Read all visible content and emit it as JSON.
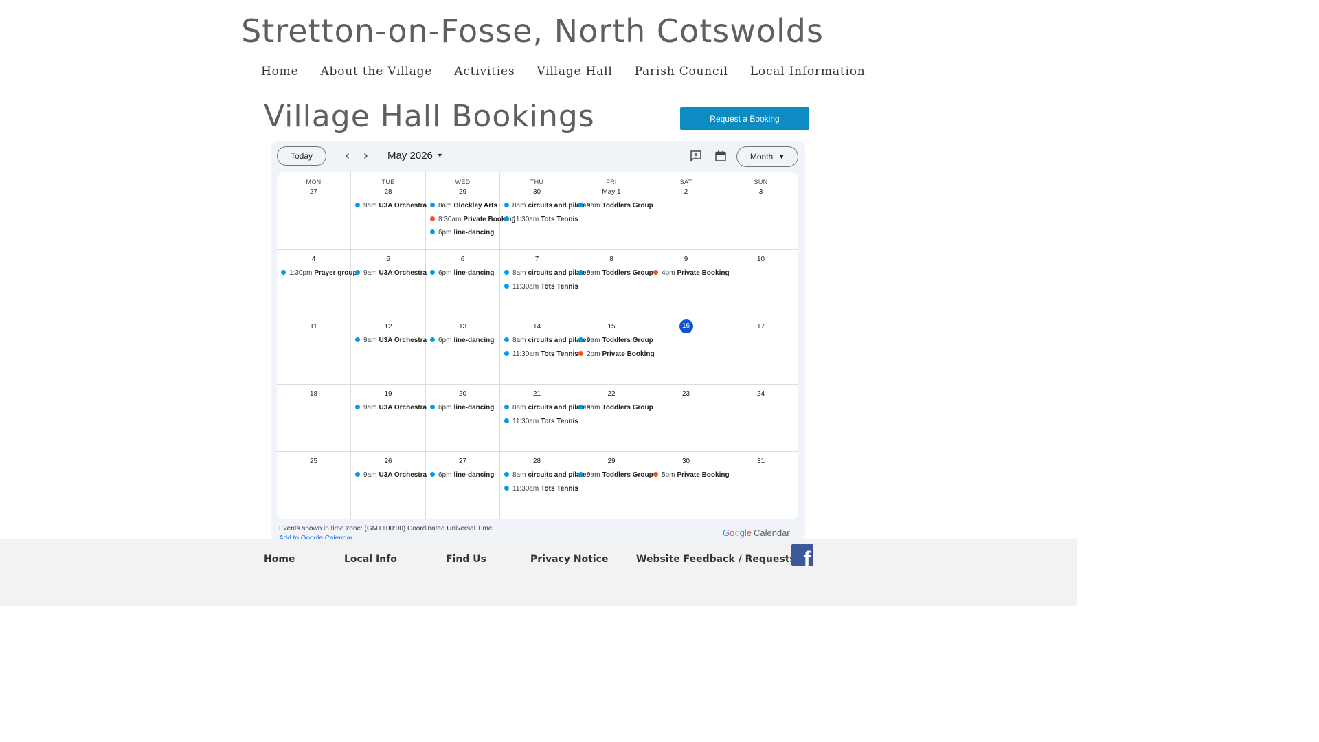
{
  "site": {
    "title": "Stretton-on-Fosse, North Cotswolds"
  },
  "nav": [
    "Home",
    "About the Village",
    "Activities",
    "Village Hall",
    "Parish Council",
    "Local Information"
  ],
  "page": {
    "title": "Village Hall Bookings",
    "request_button": "Request a Booking"
  },
  "calendar": {
    "today_label": "Today",
    "month_label": "May 2026",
    "view_label": "Month",
    "weekdays": [
      "MON",
      "TUE",
      "WED",
      "THU",
      "FRI",
      "SAT",
      "SUN"
    ],
    "colors": {
      "regular": "#039be5",
      "private": "#f4511e",
      "today": "#0b57d0"
    },
    "weeks": [
      [
        {
          "day": "27",
          "events": []
        },
        {
          "day": "28",
          "events": [
            {
              "time": "9am",
              "name": "U3A Orchestra",
              "kind": "regular"
            }
          ]
        },
        {
          "day": "29",
          "events": [
            {
              "time": "8am",
              "name": "Blockley Arts",
              "kind": "regular"
            },
            {
              "time": "8:30am",
              "name": "Private Booking",
              "kind": "private"
            },
            {
              "time": "6pm",
              "name": "line-dancing",
              "kind": "regular"
            }
          ]
        },
        {
          "day": "30",
          "events": [
            {
              "time": "8am",
              "name": "circuits and pilates",
              "kind": "regular"
            },
            {
              "time": "11:30am",
              "name": "Tots Tennis",
              "kind": "regular"
            }
          ]
        },
        {
          "day": "May 1",
          "events": [
            {
              "time": "9am",
              "name": "Toddlers Group",
              "kind": "regular"
            }
          ]
        },
        {
          "day": "2",
          "events": []
        },
        {
          "day": "3",
          "events": []
        }
      ],
      [
        {
          "day": "4",
          "events": [
            {
              "time": "1:30pm",
              "name": "Prayer group",
              "kind": "regular"
            }
          ]
        },
        {
          "day": "5",
          "events": [
            {
              "time": "9am",
              "name": "U3A Orchestra",
              "kind": "regular"
            }
          ]
        },
        {
          "day": "6",
          "events": [
            {
              "time": "6pm",
              "name": "line-dancing",
              "kind": "regular"
            }
          ]
        },
        {
          "day": "7",
          "events": [
            {
              "time": "8am",
              "name": "circuits and pilates",
              "kind": "regular"
            },
            {
              "time": "11:30am",
              "name": "Tots Tennis",
              "kind": "regular"
            }
          ]
        },
        {
          "day": "8",
          "events": [
            {
              "time": "9am",
              "name": "Toddlers Group",
              "kind": "regular"
            }
          ]
        },
        {
          "day": "9",
          "events": [
            {
              "time": "4pm",
              "name": "Private Booking",
              "kind": "private"
            }
          ]
        },
        {
          "day": "10",
          "events": []
        }
      ],
      [
        {
          "day": "11",
          "events": []
        },
        {
          "day": "12",
          "events": [
            {
              "time": "9am",
              "name": "U3A Orchestra",
              "kind": "regular"
            }
          ]
        },
        {
          "day": "13",
          "events": [
            {
              "time": "6pm",
              "name": "line-dancing",
              "kind": "regular"
            }
          ]
        },
        {
          "day": "14",
          "events": [
            {
              "time": "8am",
              "name": "circuits and pilates",
              "kind": "regular"
            },
            {
              "time": "11:30am",
              "name": "Tots Tennis",
              "kind": "regular"
            }
          ]
        },
        {
          "day": "15",
          "events": [
            {
              "time": "9am",
              "name": "Toddlers Group",
              "kind": "regular"
            },
            {
              "time": "2pm",
              "name": "Private Booking",
              "kind": "private"
            }
          ]
        },
        {
          "day": "16",
          "today": true,
          "events": []
        },
        {
          "day": "17",
          "events": []
        }
      ],
      [
        {
          "day": "18",
          "events": []
        },
        {
          "day": "19",
          "events": [
            {
              "time": "9am",
              "name": "U3A Orchestra",
              "kind": "regular"
            }
          ]
        },
        {
          "day": "20",
          "events": [
            {
              "time": "6pm",
              "name": "line-dancing",
              "kind": "regular"
            }
          ]
        },
        {
          "day": "21",
          "events": [
            {
              "time": "8am",
              "name": "circuits and pilates",
              "kind": "regular"
            },
            {
              "time": "11:30am",
              "name": "Tots Tennis",
              "kind": "regular"
            }
          ]
        },
        {
          "day": "22",
          "events": [
            {
              "time": "9am",
              "name": "Toddlers Group",
              "kind": "regular"
            }
          ]
        },
        {
          "day": "23",
          "events": []
        },
        {
          "day": "24",
          "events": []
        }
      ],
      [
        {
          "day": "25",
          "events": []
        },
        {
          "day": "26",
          "events": [
            {
              "time": "9am",
              "name": "U3A Orchestra",
              "kind": "regular"
            }
          ]
        },
        {
          "day": "27",
          "events": [
            {
              "time": "6pm",
              "name": "line-dancing",
              "kind": "regular"
            }
          ]
        },
        {
          "day": "28",
          "events": [
            {
              "time": "8am",
              "name": "circuits and pilates",
              "kind": "regular"
            },
            {
              "time": "11:30am",
              "name": "Tots Tennis",
              "kind": "regular"
            }
          ]
        },
        {
          "day": "29",
          "events": [
            {
              "time": "9am",
              "name": "Toddlers Group",
              "kind": "regular"
            }
          ]
        },
        {
          "day": "30",
          "events": [
            {
              "time": "5pm",
              "name": "Private Booking",
              "kind": "private"
            }
          ]
        },
        {
          "day": "31",
          "events": []
        }
      ]
    ],
    "timezone_note": "Events shown in time zone: (GMT+00:00) Coordinated Universal Time",
    "add_link": "Add to Google Calendar",
    "logo": {
      "google": "Google",
      "calendar": "Calendar",
      "letter_colors": [
        "#4285f4",
        "#ea4335",
        "#fbbc05",
        "#4285f4",
        "#34a853",
        "#ea4335"
      ]
    }
  },
  "footer": {
    "links": [
      "Home",
      "Local Info",
      "Find Us",
      "Privacy Notice",
      "Website Feedback / Requests"
    ],
    "facebook_icon": "facebook-icon",
    "facebook_glyph": "f"
  }
}
